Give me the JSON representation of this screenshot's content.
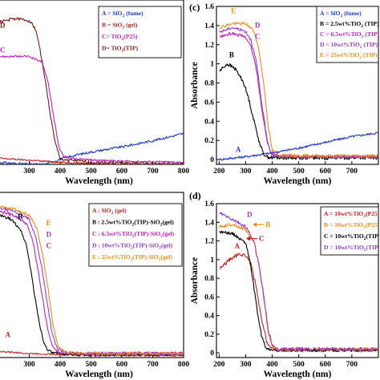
{
  "panel_letters": {
    "c": "(c)",
    "d": "(d)"
  },
  "chart_data": [
    {
      "id": "panel-a",
      "type": "line",
      "xlabel": "Wavelength (nm)",
      "ylabel": "",
      "xlim": [
        200,
        800
      ],
      "ylim": [
        0,
        1.6
      ],
      "xticks": [
        {
          "v": 300,
          "t": "300"
        },
        {
          "v": 400,
          "t": "400"
        },
        {
          "v": 500,
          "t": "500"
        },
        {
          "v": 600,
          "t": "600"
        },
        {
          "v": 700,
          "t": "700"
        },
        {
          "v": 800,
          "t": "800"
        }
      ],
      "yticks": [],
      "legend": [
        {
          "pre": "A = SiO",
          "sub": "2",
          "post": " (fume)",
          "color": "#1f3bd6"
        },
        {
          "pre": "B = SiO",
          "sub": "2",
          "post": " (gel)",
          "color": "#cc1f1f"
        },
        {
          "pre": "C= TiO",
          "sub": "2",
          "post": "(P25)",
          "color": "#c020c0"
        },
        {
          "pre": "D= TiO",
          "sub": "2",
          "post": "(TIP)",
          "color": "#7a1a1a"
        }
      ],
      "series": [
        {
          "name": "A",
          "color": "#1f3bd6",
          "noise": 0.012,
          "x": [
            200,
            300,
            350,
            380,
            400,
            450,
            500,
            600,
            700,
            800
          ],
          "y": [
            0.02,
            0.0,
            0.0,
            0.03,
            0.05,
            0.09,
            0.12,
            0.17,
            0.23,
            0.3
          ]
        },
        {
          "name": "B",
          "color": "#cc1f1f",
          "noise": 0.008,
          "x": [
            200,
            300,
            400,
            500,
            600,
            700,
            800
          ],
          "y": [
            0.06,
            0.04,
            0.02,
            0.01,
            0.0,
            0.0,
            0.0
          ]
        },
        {
          "name": "C",
          "color": "#c020c0",
          "noise": 0.01,
          "x": [
            200,
            300,
            340,
            360,
            380,
            395,
            410,
            450,
            600,
            800
          ],
          "y": [
            1.05,
            1.05,
            1.0,
            0.82,
            0.45,
            0.18,
            0.08,
            0.05,
            0.03,
            0.02
          ]
        },
        {
          "name": "D",
          "color": "#7a1a1a",
          "noise": 0.015,
          "x": [
            200,
            250,
            300,
            320,
            330,
            350,
            370,
            385,
            400,
            500,
            800
          ],
          "y": [
            1.38,
            1.42,
            1.4,
            1.32,
            1.2,
            0.85,
            0.45,
            0.2,
            0.05,
            0.02,
            0.0
          ]
        }
      ],
      "curve_labels": [
        {
          "t": "D",
          "x": 205,
          "y": 1.33,
          "color": "#7a1a1a"
        },
        {
          "t": "C",
          "x": 205,
          "y": 1.09,
          "color": "#c020c0"
        }
      ]
    },
    {
      "id": "panel-c",
      "type": "line",
      "xlabel": "Wavelength (nm)",
      "ylabel": "Absorbance",
      "xlim": [
        190,
        800
      ],
      "ylim": [
        -0.05,
        1.6
      ],
      "xticks": [
        {
          "v": 200,
          "t": "200"
        },
        {
          "v": 300,
          "t": "300"
        },
        {
          "v": 400,
          "t": "400"
        },
        {
          "v": 500,
          "t": "500"
        },
        {
          "v": 600,
          "t": "600"
        },
        {
          "v": 700,
          "t": "700"
        }
      ],
      "yticks": [
        {
          "v": 0,
          "t": "0"
        },
        {
          "v": 0.2,
          "t": "0.2"
        },
        {
          "v": 0.4,
          "t": "0.4"
        },
        {
          "v": 0.6,
          "t": "0.6"
        },
        {
          "v": 0.8,
          "t": "0.8"
        },
        {
          "v": 1.0,
          "t": "1"
        },
        {
          "v": 1.2,
          "t": "1.2"
        },
        {
          "v": 1.4,
          "t": "1.4"
        },
        {
          "v": 1.6,
          "t": "1.6"
        }
      ],
      "legend": [
        {
          "pre": "A = SiO",
          "sub": "2",
          "post": " (fume)",
          "color": "#1f3bd6"
        },
        {
          "pre": "B = 2.5wt%TiO",
          "sub": "2",
          "post": " (TIP)",
          "color": "#000000"
        },
        {
          "pre": "C = 6.5wt%TiO",
          "sub": "2",
          "post": " (TIP)",
          "color": "#c020c0"
        },
        {
          "pre": "D = 10wt%TiO",
          "sub": "2",
          "post": " (TIP)",
          "color": "#9a3cc8"
        },
        {
          "pre": "E = 25wt%TiO",
          "sub": "2",
          "post": " (TIP)",
          "color": "#f08c1a"
        }
      ],
      "series": [
        {
          "name": "A",
          "color": "#1f3bd6",
          "noise": 0.012,
          "x": [
            200,
            300,
            350,
            400,
            500,
            600,
            700,
            800
          ],
          "y": [
            0.0,
            0.03,
            0.05,
            0.07,
            0.12,
            0.18,
            0.24,
            0.28
          ]
        },
        {
          "name": "B",
          "color": "#000000",
          "noise": 0.02,
          "x": [
            200,
            230,
            260,
            290,
            310,
            330,
            350,
            365,
            380,
            400,
            500,
            800
          ],
          "y": [
            0.92,
            1.0,
            0.95,
            0.82,
            0.65,
            0.42,
            0.2,
            0.07,
            0.03,
            0.02,
            0.02,
            0.02
          ]
        },
        {
          "name": "C",
          "color": "#c020c0",
          "noise": 0.015,
          "x": [
            200,
            250,
            300,
            320,
            340,
            360,
            380,
            395,
            410,
            500,
            800
          ],
          "y": [
            1.28,
            1.32,
            1.28,
            1.18,
            0.95,
            0.55,
            0.2,
            0.07,
            0.04,
            0.03,
            0.03
          ]
        },
        {
          "name": "D",
          "color": "#9a3cc8",
          "noise": 0.015,
          "x": [
            200,
            250,
            300,
            320,
            340,
            360,
            380,
            395,
            410,
            500,
            800
          ],
          "y": [
            1.33,
            1.38,
            1.34,
            1.25,
            1.02,
            0.6,
            0.22,
            0.07,
            0.04,
            0.03,
            0.03
          ]
        },
        {
          "name": "E",
          "color": "#f08c1a",
          "noise": 0.015,
          "x": [
            200,
            250,
            300,
            330,
            350,
            370,
            385,
            400,
            420,
            500,
            800
          ],
          "y": [
            1.38,
            1.42,
            1.42,
            1.35,
            1.15,
            0.75,
            0.35,
            0.1,
            0.05,
            0.04,
            0.04
          ]
        }
      ],
      "curve_labels": [
        {
          "t": "E",
          "x": 245,
          "y": 1.53,
          "color": "#f08c1a"
        },
        {
          "t": "D",
          "x": 335,
          "y": 1.38,
          "color": "#9a3cc8"
        },
        {
          "t": "C",
          "x": 335,
          "y": 1.26,
          "color": "#c020c0"
        },
        {
          "t": "B",
          "x": 238,
          "y": 1.07,
          "color": "#000000"
        },
        {
          "t": "A",
          "x": 262,
          "y": 0.08,
          "color": "#1f3bd6"
        }
      ]
    },
    {
      "id": "panel-b",
      "type": "line",
      "xlabel": "Wavelength (nm)",
      "ylabel": "",
      "xlim": [
        200,
        800
      ],
      "ylim": [
        0,
        1.6
      ],
      "xticks": [
        {
          "v": 300,
          "t": "300"
        },
        {
          "v": 400,
          "t": "400"
        },
        {
          "v": 500,
          "t": "500"
        },
        {
          "v": 600,
          "t": "600"
        },
        {
          "v": 700,
          "t": "700"
        },
        {
          "v": 800,
          "t": "800"
        }
      ],
      "yticks": [],
      "legend": [
        {
          "pre": "A : SiO",
          "sub": "2",
          "post": " (gel)",
          "color": "#cc1f1f"
        },
        {
          "pre": "B : 2.5wt%TiO",
          "sub": "2",
          "post": "(TIP)-SiO",
          "sub2": "2",
          "post2": "(gel)",
          "color": "#000000"
        },
        {
          "pre": "C : 6.5wt%TiO",
          "sub": "2",
          "post": "(TIP)-SiO",
          "sub2": "2",
          "post2": "(gel)",
          "color": "#c020c0"
        },
        {
          "pre": "D : 10wt%TiO",
          "sub": "2",
          "post": "(TIP)-SiO",
          "sub2": "2",
          "post2": "(gel)",
          "color": "#9a3cc8"
        },
        {
          "pre": "E : 25wt%TiO",
          "sub": "2",
          "post": "(TIP)-SiO",
          "sub2": "2",
          "post2": "(gel)",
          "color": "#f08c1a"
        }
      ],
      "series": [
        {
          "name": "A",
          "color": "#cc1f1f",
          "noise": 0.008,
          "x": [
            200,
            300,
            400,
            500,
            600,
            700,
            800
          ],
          "y": [
            0.06,
            0.04,
            0.03,
            0.02,
            0.02,
            0.02,
            0.02
          ]
        },
        {
          "name": "B",
          "color": "#000000",
          "noise": 0.015,
          "x": [
            200,
            240,
            270,
            290,
            305,
            320,
            335,
            350,
            365,
            380,
            450,
            800
          ],
          "y": [
            1.38,
            1.34,
            1.25,
            1.1,
            0.85,
            0.55,
            0.3,
            0.12,
            0.06,
            0.04,
            0.03,
            0.03
          ]
        },
        {
          "name": "C",
          "color": "#c020c0",
          "noise": 0.015,
          "x": [
            200,
            250,
            290,
            310,
            330,
            350,
            365,
            380,
            400,
            450,
            800
          ],
          "y": [
            1.42,
            1.38,
            1.3,
            1.15,
            0.82,
            0.45,
            0.2,
            0.08,
            0.05,
            0.04,
            0.04
          ]
        },
        {
          "name": "D",
          "color": "#9a3cc8",
          "noise": 0.015,
          "x": [
            200,
            250,
            300,
            320,
            340,
            360,
            375,
            390,
            410,
            450,
            800
          ],
          "y": [
            1.45,
            1.42,
            1.34,
            1.18,
            0.88,
            0.5,
            0.22,
            0.09,
            0.05,
            0.04,
            0.04
          ]
        },
        {
          "name": "E",
          "color": "#f08c1a",
          "noise": 0.015,
          "x": [
            200,
            250,
            300,
            325,
            345,
            365,
            380,
            395,
            415,
            450,
            800
          ],
          "y": [
            1.46,
            1.44,
            1.38,
            1.25,
            0.98,
            0.58,
            0.27,
            0.1,
            0.05,
            0.04,
            0.04
          ]
        }
      ],
      "curve_labels": [
        {
          "t": "B",
          "x": 263,
          "y": 1.34,
          "color": "#000000"
        },
        {
          "t": "E",
          "x": 355,
          "y": 1.28,
          "color": "#f08c1a"
        },
        {
          "t": "D",
          "x": 355,
          "y": 1.17,
          "color": "#9a3cc8"
        },
        {
          "t": "C",
          "x": 355,
          "y": 1.06,
          "color": "#c020c0"
        },
        {
          "t": "A",
          "x": 222,
          "y": 0.2,
          "color": "#cc1f1f"
        }
      ]
    },
    {
      "id": "panel-d",
      "type": "line",
      "xlabel": "Wavelength (nm)",
      "ylabel": "Absorbance",
      "xlim": [
        190,
        800
      ],
      "ylim": [
        -0.05,
        1.6
      ],
      "xticks": [
        {
          "v": 200,
          "t": "200"
        },
        {
          "v": 300,
          "t": "300"
        },
        {
          "v": 400,
          "t": "400"
        },
        {
          "v": 500,
          "t": "500"
        },
        {
          "v": 600,
          "t": "600"
        },
        {
          "v": 700,
          "t": "700"
        }
      ],
      "yticks": [
        {
          "v": 0,
          "t": "0"
        },
        {
          "v": 0.2,
          "t": "0.2"
        },
        {
          "v": 0.4,
          "t": "0.4"
        },
        {
          "v": 0.6,
          "t": "0.6"
        },
        {
          "v": 0.8,
          "t": "0.8"
        },
        {
          "v": 1.0,
          "t": "1"
        },
        {
          "v": 1.2,
          "t": "1.2"
        },
        {
          "v": 1.4,
          "t": "1.4"
        },
        {
          "v": 1.6,
          "t": "1.6"
        }
      ],
      "legend": [
        {
          "pre": "A = 10wt%TiO",
          "sub": "2",
          "post": "(P25",
          "color": "#cc1f1f"
        },
        {
          "pre": "B = 10wt%TiO",
          "sub": "2",
          "post": "(P25",
          "color": "#f08c1a"
        },
        {
          "pre": "C = 10wt%TiO",
          "sub": "2",
          "post": "(TIP",
          "color": "#000000"
        },
        {
          "pre": "D = 10wt%TiO",
          "sub": "2",
          "post": "(TIP",
          "color": "#9a3cc8"
        }
      ],
      "series": [
        {
          "name": "A",
          "color": "#cc1f1f",
          "noise": 0.02,
          "x": [
            200,
            240,
            270,
            300,
            320,
            340,
            360,
            380,
            395,
            410,
            800
          ],
          "y": [
            0.9,
            1.0,
            1.05,
            1.05,
            0.95,
            0.7,
            0.35,
            0.12,
            0.05,
            0.03,
            0.03
          ]
        },
        {
          "name": "C",
          "color": "#000000",
          "noise": 0.015,
          "x": [
            200,
            250,
            300,
            315,
            330,
            345,
            360,
            375,
            390,
            800
          ],
          "y": [
            1.3,
            1.28,
            1.18,
            1.0,
            0.72,
            0.42,
            0.18,
            0.06,
            0.03,
            0.03
          ]
        },
        {
          "name": "B",
          "color": "#f08c1a",
          "noise": 0.018,
          "x": [
            200,
            250,
            300,
            330,
            350,
            370,
            385,
            400,
            415,
            800
          ],
          "y": [
            1.35,
            1.38,
            1.32,
            1.2,
            0.95,
            0.55,
            0.22,
            0.07,
            0.04,
            0.04
          ]
        },
        {
          "name": "D",
          "color": "#9a3cc8",
          "noise": 0.02,
          "x": [
            200,
            250,
            300,
            330,
            350,
            370,
            385,
            400,
            415,
            800
          ],
          "y": [
            1.5,
            1.43,
            1.35,
            1.2,
            0.95,
            0.58,
            0.25,
            0.08,
            0.04,
            0.04
          ]
        }
      ],
      "curve_labels": [
        {
          "t": "A",
          "x": 258,
          "y": 1.12,
          "color": "#cc1f1f"
        },
        {
          "t": "D",
          "x": 305,
          "y": 1.46,
          "color": "#9a3cc8"
        },
        {
          "t": "B",
          "x": 375,
          "y": 1.35,
          "color": "#f08c1a",
          "arrow": true
        },
        {
          "t": "C",
          "x": 350,
          "y": 1.2,
          "color": "#cc1f1f",
          "arrow": true
        }
      ]
    }
  ]
}
